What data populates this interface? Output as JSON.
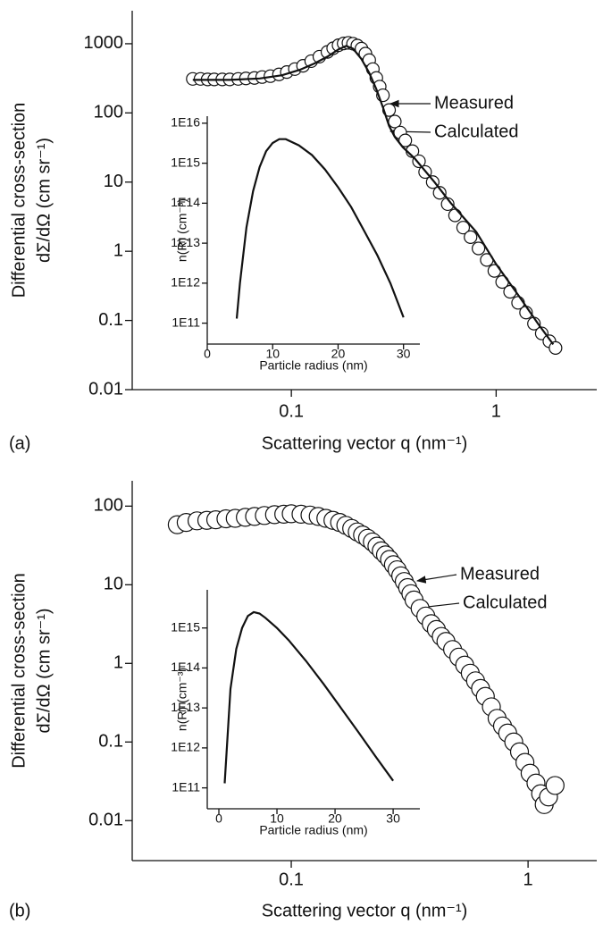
{
  "chart_data": [
    {
      "type": "scatter",
      "panel_label": "(a)",
      "xlabel": "Scattering vector q (nm⁻¹)",
      "ylabel": [
        "Differential cross-section",
        "dΣ/dΩ (cm sr⁻¹)"
      ],
      "xscale": "log",
      "yscale": "log",
      "xlim": [
        0.0167,
        3.1
      ],
      "ylim": [
        0.01,
        3000
      ],
      "xticks": [
        0.1,
        1
      ],
      "yticks": [
        0.01,
        0.1,
        1,
        10,
        100,
        1000
      ],
      "series": [
        {
          "name": "Measured",
          "marker": "circle",
          "color": "#111111",
          "x": [
            0.033,
            0.036,
            0.039,
            0.042,
            0.046,
            0.05,
            0.055,
            0.06,
            0.066,
            0.072,
            0.079,
            0.087,
            0.095,
            0.104,
            0.114,
            0.125,
            0.137,
            0.15,
            0.16,
            0.17,
            0.18,
            0.19,
            0.2,
            0.21,
            0.22,
            0.23,
            0.24,
            0.25,
            0.26,
            0.27,
            0.28,
            0.3,
            0.32,
            0.34,
            0.36,
            0.39,
            0.42,
            0.45,
            0.49,
            0.53,
            0.58,
            0.63,
            0.69,
            0.75,
            0.82,
            0.9,
            0.98,
            1.07,
            1.17,
            1.28,
            1.4,
            1.53,
            1.67,
            1.82,
            1.95
          ],
          "values": [
            310,
            310,
            305,
            305,
            305,
            305,
            310,
            315,
            320,
            330,
            340,
            360,
            390,
            430,
            480,
            560,
            650,
            760,
            860,
            950,
            1010,
            1030,
            1000,
            940,
            850,
            720,
            580,
            430,
            320,
            240,
            180,
            110,
            75,
            52,
            40,
            28,
            20,
            14,
            10,
            7,
            4.8,
            3.3,
            2.2,
            1.6,
            1.1,
            0.75,
            0.52,
            0.36,
            0.26,
            0.18,
            0.13,
            0.09,
            0.065,
            0.05,
            0.04
          ]
        },
        {
          "name": "Calculated",
          "marker": "line",
          "color": "#111111",
          "x": [
            0.033,
            0.05,
            0.07,
            0.09,
            0.11,
            0.13,
            0.15,
            0.17,
            0.185,
            0.2,
            0.22,
            0.24,
            0.26,
            0.28,
            0.3,
            0.32,
            0.35,
            0.4,
            0.5,
            0.6,
            0.8,
            1,
            1.3,
            1.6,
            1.9
          ],
          "values": [
            300,
            300,
            315,
            350,
            420,
            520,
            650,
            830,
            930,
            850,
            600,
            380,
            220,
            120,
            65,
            45,
            32,
            22,
            10,
            5,
            1.9,
            0.65,
            0.22,
            0.09,
            0.045
          ]
        }
      ]
    },
    {
      "type": "line",
      "xlabel": "Particle radius (nm)",
      "ylabel": "n(R) (cm⁻³)",
      "xscale": "linear",
      "yscale": "log",
      "xlim": [
        0,
        32.5
      ],
      "ylim": [
        30000000000.0,
        1.5e+16
      ],
      "xticks": [
        0,
        10,
        20,
        30
      ],
      "yticks": [
        {
          "value": 100000000000.0,
          "label": "1E11"
        },
        {
          "value": 1000000000000.0,
          "label": "1E12"
        },
        {
          "value": 10000000000000.0,
          "label": "1E13"
        },
        {
          "value": 100000000000000.0,
          "label": "1E14"
        },
        {
          "value": 1000000000000000.0,
          "label": "1E15"
        },
        {
          "value": 1e+16,
          "label": "1E16"
        }
      ],
      "color": "#111111",
      "x": [
        4.5,
        5,
        6,
        7,
        8,
        9,
        10,
        11,
        12,
        14,
        16,
        18,
        20,
        22,
        24,
        26,
        28,
        30
      ],
      "values": [
        130000000000.0,
        1000000000000.0,
        25000000000000.0,
        200000000000000.0,
        800000000000000.0,
        2000000000000000.0,
        3200000000000000.0,
        4000000000000000.0,
        4000000000000000.0,
        2800000000000000.0,
        1600000000000000.0,
        700000000000000.0,
        250000000000000.0,
        80000000000000.0,
        20000000000000.0,
        5000000000000.0,
        1000000000000.0,
        140000000000.0
      ]
    },
    {
      "type": "scatter",
      "panel_label": "(b)",
      "xlabel": "Scattering vector q (nm⁻¹)",
      "ylabel": [
        "Differential cross-section",
        "dΣ/dΩ (cm sr⁻¹)"
      ],
      "xscale": "log",
      "yscale": "log",
      "xlim": [
        0.0213,
        1.95
      ],
      "ylim": [
        0.0031,
        210
      ],
      "xticks": [
        0.1,
        1
      ],
      "yticks": [
        0.01,
        0.1,
        1,
        10,
        100
      ],
      "series": [
        {
          "name": "Measured",
          "marker": "circle",
          "color": "#111111",
          "x": [
            0.033,
            0.036,
            0.04,
            0.044,
            0.048,
            0.053,
            0.058,
            0.064,
            0.07,
            0.077,
            0.085,
            0.093,
            0.1,
            0.11,
            0.12,
            0.13,
            0.14,
            0.15,
            0.16,
            0.17,
            0.18,
            0.19,
            0.2,
            0.21,
            0.22,
            0.23,
            0.24,
            0.25,
            0.26,
            0.27,
            0.28,
            0.29,
            0.3,
            0.31,
            0.32,
            0.33,
            0.35,
            0.37,
            0.39,
            0.41,
            0.43,
            0.45,
            0.48,
            0.51,
            0.54,
            0.57,
            0.6,
            0.63,
            0.66,
            0.7,
            0.74,
            0.78,
            0.82,
            0.87,
            0.92,
            0.97,
            1.02,
            1.08,
            1.13,
            1.17,
            1.22,
            1.3
          ],
          "values": [
            58,
            62,
            65,
            66,
            67,
            69,
            70,
            72,
            74,
            76,
            78,
            79,
            80,
            79,
            77,
            74,
            70,
            66,
            62,
            57,
            52,
            47,
            43,
            39,
            35,
            31,
            27,
            24,
            21,
            18,
            15.5,
            13,
            11,
            9.2,
            7.7,
            6.4,
            5,
            4,
            3.2,
            2.7,
            2.2,
            1.9,
            1.5,
            1.2,
            0.95,
            0.75,
            0.6,
            0.48,
            0.38,
            0.28,
            0.2,
            0.16,
            0.13,
            0.1,
            0.075,
            0.055,
            0.04,
            0.03,
            0.022,
            0.016,
            0.02,
            0.028
          ]
        },
        {
          "name": "Calculated",
          "marker": "line",
          "color": "#111111",
          "x": [
            0.033,
            0.05,
            0.07,
            0.1,
            0.13,
            0.17,
            0.22,
            0.27,
            0.32,
            0.4,
            0.5,
            0.6,
            0.8,
            1,
            1.2
          ],
          "values": [
            60,
            68,
            75,
            80,
            74,
            57,
            35,
            18,
            8,
            2.8,
            1.25,
            0.55,
            0.14,
            0.042,
            0.018
          ]
        }
      ]
    },
    {
      "type": "line",
      "xlabel": "Particle radius (nm)",
      "ylabel": "n(R) (cm⁻³)",
      "xscale": "linear",
      "yscale": "log",
      "xlim": [
        -2,
        34.6
      ],
      "ylim": [
        30000000000.0,
        9000000000000000.0
      ],
      "xticks": [
        0,
        10,
        20,
        30
      ],
      "yticks": [
        {
          "value": 100000000000.0,
          "label": "1E11"
        },
        {
          "value": 1000000000000.0,
          "label": "1E12"
        },
        {
          "value": 10000000000000.0,
          "label": "1E13"
        },
        {
          "value": 100000000000000.0,
          "label": "1E14"
        },
        {
          "value": 1000000000000000.0,
          "label": "1E15"
        }
      ],
      "color": "#111111",
      "x": [
        1,
        2,
        3,
        4,
        5,
        6,
        7,
        8,
        10,
        12,
        15,
        18,
        21,
        24,
        27,
        30
      ],
      "values": [
        130000000000.0,
        30000000000000.0,
        300000000000000.0,
        1000000000000000.0,
        2000000000000000.0,
        2500000000000000.0,
        2300000000000000.0,
        1800000000000000.0,
        1000000000000000.0,
        500000000000000.0,
        150000000000000.0,
        40000000000000.0,
        10000000000000.0,
        2500000000000.0,
        600000000000.0,
        150000000000.0
      ]
    }
  ]
}
